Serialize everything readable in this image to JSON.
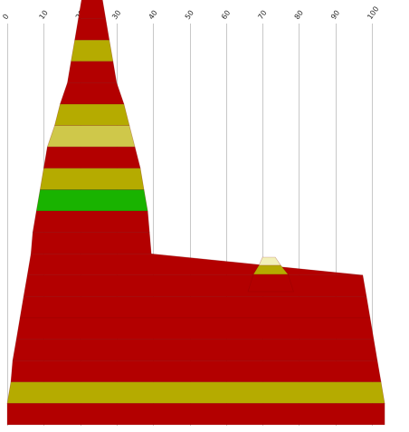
{
  "chart_data": {
    "type": "area",
    "title": "",
    "xlabel": "",
    "ylabel": "",
    "xlim": [
      0,
      104
    ],
    "x_ticks": [
      "0",
      "10",
      "20",
      "30",
      "40",
      "50",
      "60",
      "70",
      "80",
      "90",
      "100"
    ],
    "x_tick_values": [
      0,
      10,
      20,
      30,
      40,
      50,
      60,
      70,
      80,
      90,
      100
    ],
    "grid": true,
    "colors": {
      "red": "#b30000",
      "olive": "#b5ab00",
      "pale": "#cfc84a",
      "green": "#19b300",
      "tip": "#f2f0b8"
    },
    "layers": [
      {
        "start": 20.5,
        "end": 26.0,
        "color": "red"
      },
      {
        "start": 19.5,
        "end": 27.0,
        "color": "red"
      },
      {
        "start": 18.5,
        "end": 28.0,
        "color": "olive"
      },
      {
        "start": 17.5,
        "end": 29.0,
        "color": "red"
      },
      {
        "start": 16.5,
        "end": 30.0,
        "color": "red"
      },
      {
        "start": 14.5,
        "end": 32.0,
        "color": "olive"
      },
      {
        "start": 13.0,
        "end": 33.5,
        "color": "pale"
      },
      {
        "start": 11.0,
        "end": 35.0,
        "color": "red"
      },
      {
        "start": 10.0,
        "end": 36.5,
        "color": "olive"
      },
      {
        "start": 9.0,
        "end": 37.5,
        "color": "green"
      },
      {
        "start": 8.0,
        "end": 38.5,
        "color": "red"
      },
      {
        "start": 7.0,
        "end": 39.0,
        "color": "red"
      },
      {
        "start": 6.5,
        "end": 39.5,
        "color": "red"
      },
      {
        "start": 5.5,
        "end": 97.5,
        "color": "red"
      },
      {
        "start": 4.5,
        "end": 98.5,
        "color": "red"
      },
      {
        "start": 3.5,
        "end": 99.5,
        "color": "red"
      },
      {
        "start": 2.5,
        "end": 100.5,
        "color": "red"
      },
      {
        "start": 1.5,
        "end": 101.5,
        "color": "red"
      },
      {
        "start": 1.0,
        "end": 102.5,
        "color": "olive"
      },
      {
        "start": 0.0,
        "end": 103.5,
        "color": "red"
      }
    ],
    "side_peak": [
      {
        "start": 70.0,
        "end": 73.5,
        "color": "tip"
      },
      {
        "start": 69.0,
        "end": 75.0,
        "color": "olive"
      },
      {
        "start": 67.5,
        "end": 77.0,
        "color": "red"
      }
    ]
  }
}
